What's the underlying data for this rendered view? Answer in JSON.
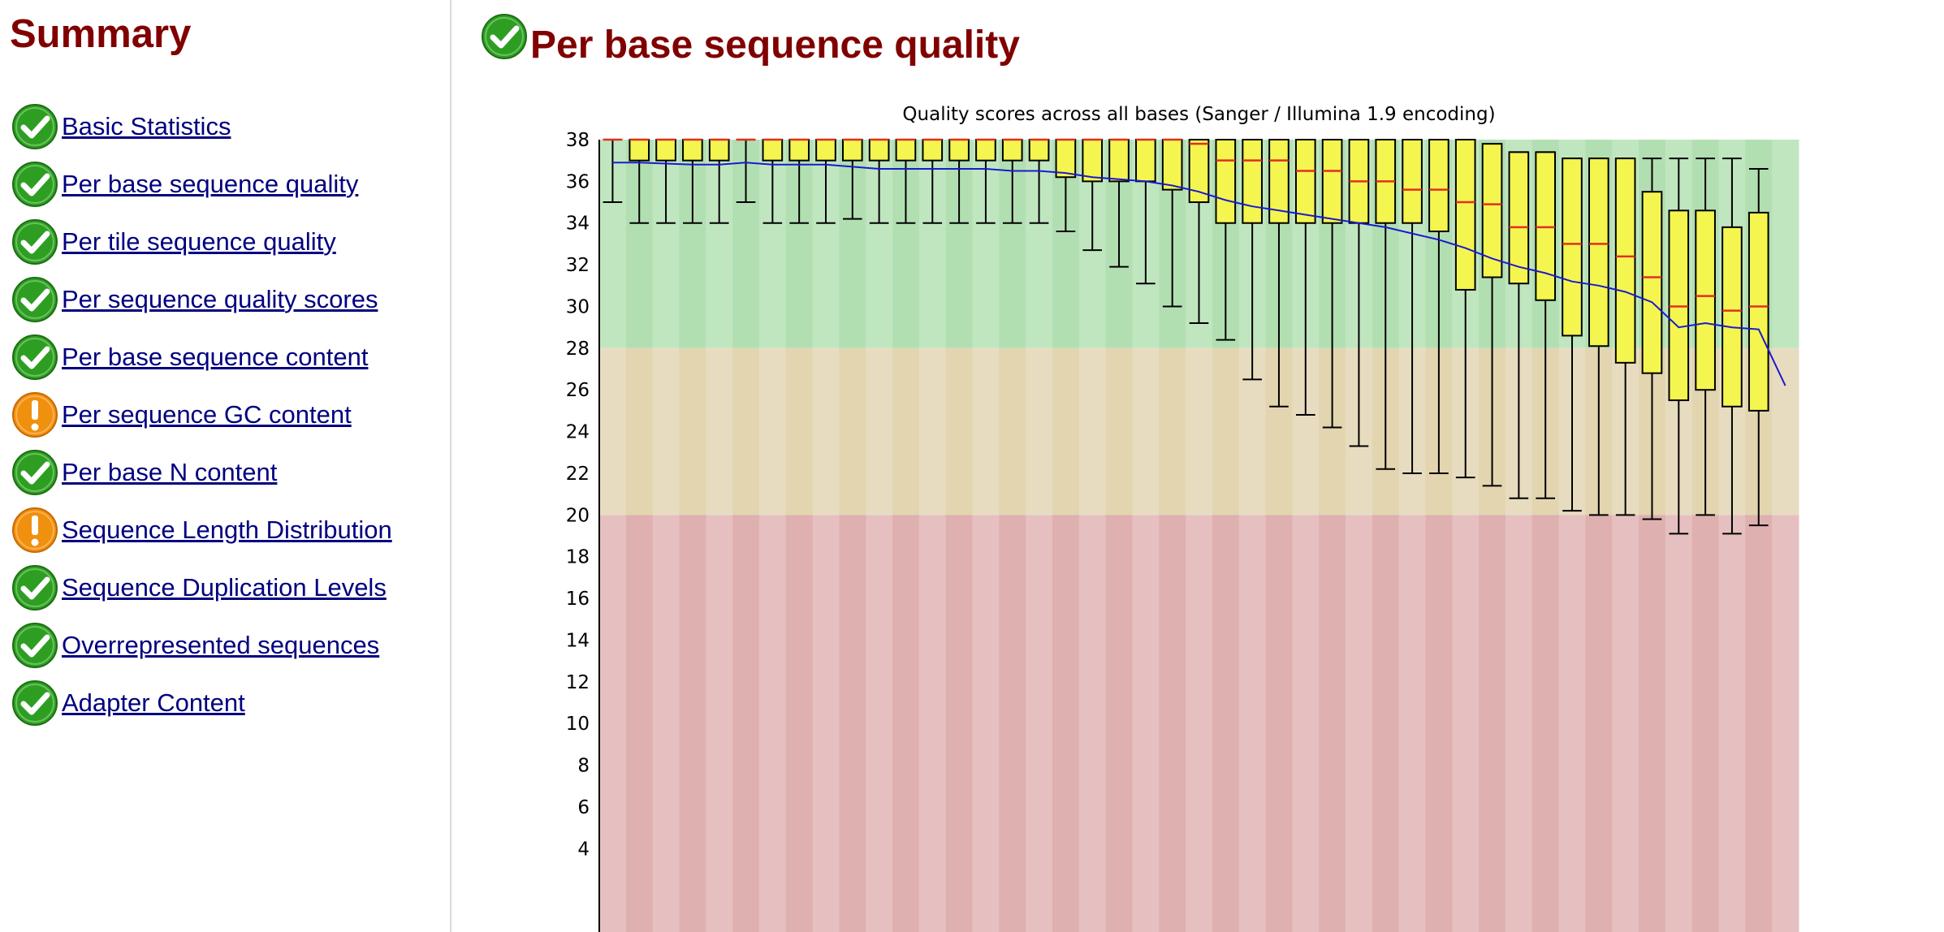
{
  "sidebar": {
    "title": "Summary",
    "items": [
      {
        "label": "Basic Statistics",
        "status": "pass",
        "icon": "check-icon"
      },
      {
        "label": "Per base sequence quality",
        "status": "pass",
        "icon": "check-icon"
      },
      {
        "label": "Per tile sequence quality",
        "status": "pass",
        "icon": "check-icon"
      },
      {
        "label": "Per sequence quality scores",
        "status": "pass",
        "icon": "check-icon"
      },
      {
        "label": "Per base sequence content",
        "status": "pass",
        "icon": "check-icon"
      },
      {
        "label": "Per sequence GC content",
        "status": "warn",
        "icon": "warning-icon"
      },
      {
        "label": "Per base N content",
        "status": "pass",
        "icon": "check-icon"
      },
      {
        "label": "Sequence Length Distribution",
        "status": "warn",
        "icon": "warning-icon"
      },
      {
        "label": "Sequence Duplication Levels",
        "status": "pass",
        "icon": "check-icon"
      },
      {
        "label": "Overrepresented sequences",
        "status": "pass",
        "icon": "check-icon"
      },
      {
        "label": "Adapter Content",
        "status": "pass",
        "icon": "check-icon"
      }
    ]
  },
  "main": {
    "title": "Per base sequence quality",
    "status": "pass",
    "icon": "check-icon"
  },
  "colors": {
    "title_red": "#800000",
    "link_blue": "#000080",
    "pass_green": "#2e9e22",
    "warn_orange": "#f0900f",
    "zone_good": "#c0e6c0",
    "zone_good_alt": "#b2dfb2",
    "zone_mid": "#e8dcc0",
    "zone_mid_alt": "#e2d5b0",
    "zone_bad": "#e6c0c0",
    "zone_bad_alt": "#dfb0b0",
    "box_fill": "#f5f550",
    "median": "#e03020",
    "mean_line": "#1a1ad0"
  },
  "chart_data": {
    "type": "box",
    "title": "Quality scores across all bases (Sanger / Illumina 1.9 encoding)",
    "ylim": [
      0,
      38
    ],
    "y_ticks": [
      4,
      6,
      8,
      10,
      12,
      14,
      16,
      18,
      20,
      22,
      24,
      26,
      28,
      30,
      32,
      34,
      36,
      38
    ],
    "zones": [
      {
        "from": 28,
        "to": 38,
        "quality": "good"
      },
      {
        "from": 20,
        "to": 28,
        "quality": "reasonable"
      },
      {
        "from": 0,
        "to": 20,
        "quality": "poor"
      }
    ],
    "boxes": [
      {
        "low": 35,
        "q1": 38,
        "median": 38,
        "q3": 38,
        "high": 38
      },
      {
        "low": 34,
        "q1": 37,
        "median": 38,
        "q3": 38,
        "high": 38
      },
      {
        "low": 34,
        "q1": 37,
        "median": 38,
        "q3": 38,
        "high": 38
      },
      {
        "low": 34,
        "q1": 37,
        "median": 38,
        "q3": 38,
        "high": 38
      },
      {
        "low": 34,
        "q1": 37,
        "median": 38,
        "q3": 38,
        "high": 38
      },
      {
        "low": 35,
        "q1": 38,
        "median": 38,
        "q3": 38,
        "high": 38
      },
      {
        "low": 34,
        "q1": 37,
        "median": 38,
        "q3": 38,
        "high": 38
      },
      {
        "low": 34,
        "q1": 37,
        "median": 38,
        "q3": 38,
        "high": 38
      },
      {
        "low": 34,
        "q1": 37,
        "median": 38,
        "q3": 38,
        "high": 38
      },
      {
        "low": 34.2,
        "q1": 37,
        "median": 38,
        "q3": 38,
        "high": 38
      },
      {
        "low": 34,
        "q1": 37,
        "median": 38,
        "q3": 38,
        "high": 38
      },
      {
        "low": 34,
        "q1": 37,
        "median": 38,
        "q3": 38,
        "high": 38
      },
      {
        "low": 34,
        "q1": 37,
        "median": 38,
        "q3": 38,
        "high": 38
      },
      {
        "low": 34,
        "q1": 37,
        "median": 38,
        "q3": 38,
        "high": 38
      },
      {
        "low": 34,
        "q1": 37,
        "median": 38,
        "q3": 38,
        "high": 38
      },
      {
        "low": 34,
        "q1": 37,
        "median": 38,
        "q3": 38,
        "high": 38
      },
      {
        "low": 34,
        "q1": 37,
        "median": 38,
        "q3": 38,
        "high": 38
      },
      {
        "low": 33.6,
        "q1": 36.2,
        "median": 38,
        "q3": 38,
        "high": 38
      },
      {
        "low": 32.7,
        "q1": 36,
        "median": 38,
        "q3": 38,
        "high": 38
      },
      {
        "low": 31.9,
        "q1": 36,
        "median": 38,
        "q3": 38,
        "high": 38
      },
      {
        "low": 31.1,
        "q1": 36,
        "median": 38,
        "q3": 38,
        "high": 38
      },
      {
        "low": 30,
        "q1": 35.6,
        "median": 38,
        "q3": 38,
        "high": 38
      },
      {
        "low": 29.2,
        "q1": 35,
        "median": 37.8,
        "q3": 38,
        "high": 38
      },
      {
        "low": 28.4,
        "q1": 34,
        "median": 37,
        "q3": 38,
        "high": 38
      },
      {
        "low": 26.5,
        "q1": 34,
        "median": 37,
        "q3": 38,
        "high": 38
      },
      {
        "low": 25.2,
        "q1": 34,
        "median": 37,
        "q3": 38,
        "high": 38
      },
      {
        "low": 24.8,
        "q1": 34,
        "median": 36.5,
        "q3": 38,
        "high": 38
      },
      {
        "low": 24.2,
        "q1": 34,
        "median": 36.5,
        "q3": 38,
        "high": 38
      },
      {
        "low": 23.3,
        "q1": 34,
        "median": 36,
        "q3": 38,
        "high": 38
      },
      {
        "low": 22.2,
        "q1": 34,
        "median": 36,
        "q3": 38,
        "high": 38
      },
      {
        "low": 22,
        "q1": 34,
        "median": 35.6,
        "q3": 38,
        "high": 38
      },
      {
        "low": 22,
        "q1": 33.6,
        "median": 35.6,
        "q3": 38,
        "high": 38
      },
      {
        "low": 21.8,
        "q1": 30.8,
        "median": 35,
        "q3": 38,
        "high": 38
      },
      {
        "low": 21.4,
        "q1": 31.4,
        "median": 34.9,
        "q3": 37.8,
        "high": 37.8
      },
      {
        "low": 20.8,
        "q1": 31.1,
        "median": 33.8,
        "q3": 37.4,
        "high": 37.4
      },
      {
        "low": 20.8,
        "q1": 30.3,
        "median": 33.8,
        "q3": 37.4,
        "high": 37.4
      },
      {
        "low": 20.2,
        "q1": 28.6,
        "median": 33,
        "q3": 37.1,
        "high": 37.1
      },
      {
        "low": 20,
        "q1": 28.1,
        "median": 33,
        "q3": 37.1,
        "high": 37.1
      },
      {
        "low": 20,
        "q1": 27.3,
        "median": 32.4,
        "q3": 37.1,
        "high": 37.1
      },
      {
        "low": 19.8,
        "q1": 26.8,
        "median": 31.4,
        "q3": 35.5,
        "high": 37.1
      },
      {
        "low": 19.1,
        "q1": 25.5,
        "median": 30,
        "q3": 34.6,
        "high": 37.1
      },
      {
        "low": 20,
        "q1": 26,
        "median": 30.5,
        "q3": 34.6,
        "high": 37.1
      },
      {
        "low": 19.1,
        "q1": 25.2,
        "median": 29.8,
        "q3": 33.8,
        "high": 37.1
      },
      {
        "low": 19.5,
        "q1": 25,
        "median": 30,
        "q3": 34.5,
        "high": 36.6
      },
      {
        "low": null,
        "q1": null,
        "median": null,
        "q3": null,
        "high": null
      }
    ],
    "mean": [
      36.9,
      36.9,
      36.85,
      36.8,
      36.8,
      36.9,
      36.8,
      36.8,
      36.8,
      36.7,
      36.6,
      36.6,
      36.6,
      36.6,
      36.6,
      36.5,
      36.5,
      36.4,
      36.2,
      36.1,
      36.0,
      35.8,
      35.5,
      35.1,
      34.8,
      34.6,
      34.4,
      34.2,
      34.0,
      33.8,
      33.5,
      33.2,
      32.8,
      32.3,
      31.9,
      31.6,
      31.2,
      31.0,
      30.7,
      30.2,
      29.0,
      29.2,
      29.0,
      28.9,
      26.2
    ]
  }
}
